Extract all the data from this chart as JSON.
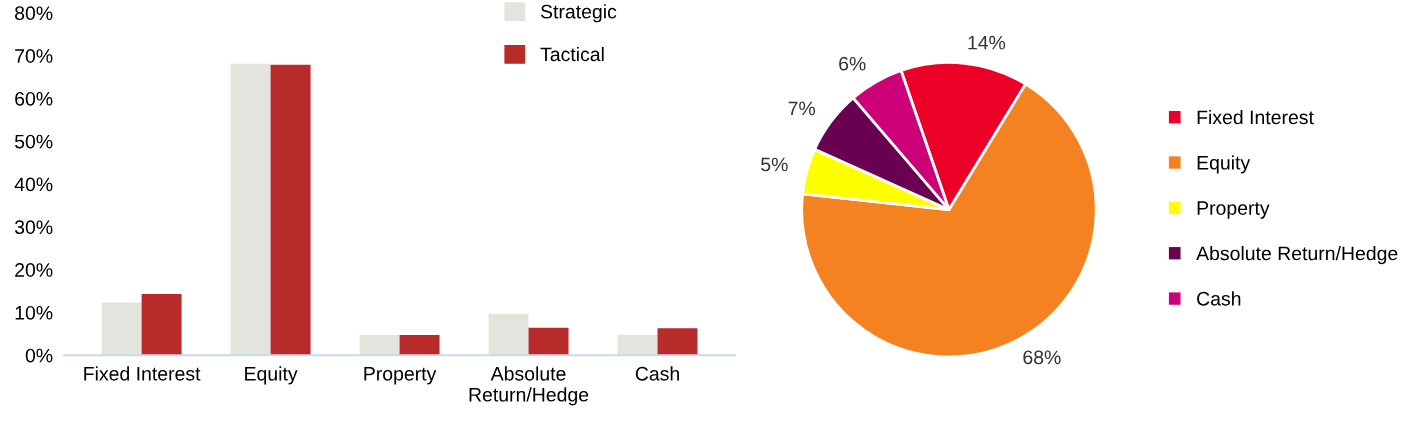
{
  "chart_data": [
    {
      "type": "bar",
      "categories": [
        "Fixed Interest",
        "Equity",
        "Property",
        "Absolute\nReturn/Hedge",
        "Cash"
      ],
      "series": [
        {
          "name": "Strategic",
          "color": "#e4e4df",
          "values": [
            12.3,
            68.1,
            4.7,
            9.7,
            4.8
          ]
        },
        {
          "name": "Tactical",
          "color": "#b92b2b",
          "values": [
            14.3,
            67.9,
            4.7,
            6.4,
            6.3
          ]
        }
      ],
      "ylim": [
        0,
        80
      ],
      "yticks": [
        {
          "value": 0,
          "label": "0%"
        },
        {
          "value": 10,
          "label": "10%"
        },
        {
          "value": 20,
          "label": "20%"
        },
        {
          "value": 30,
          "label": "30%"
        },
        {
          "value": 40,
          "label": "40%"
        },
        {
          "value": 50,
          "label": "50%"
        },
        {
          "value": 60,
          "label": "60%"
        },
        {
          "value": 70,
          "label": "70%"
        },
        {
          "value": 80,
          "label": "80%"
        }
      ],
      "grid": false,
      "legend": "top right"
    },
    {
      "type": "pie",
      "categories": [
        "Fixed Interest",
        "Equity",
        "Property",
        "Absolute Return/Hedge",
        "Cash"
      ],
      "values": [
        14,
        68,
        5,
        7,
        6
      ],
      "colors": [
        "#ec0028",
        "#f58220",
        "#ffff00",
        "#6a0050",
        "#cc0077"
      ],
      "value_labels": [
        "14%",
        "68%",
        "5%",
        "7%",
        "6%"
      ],
      "legend": "right"
    }
  ]
}
